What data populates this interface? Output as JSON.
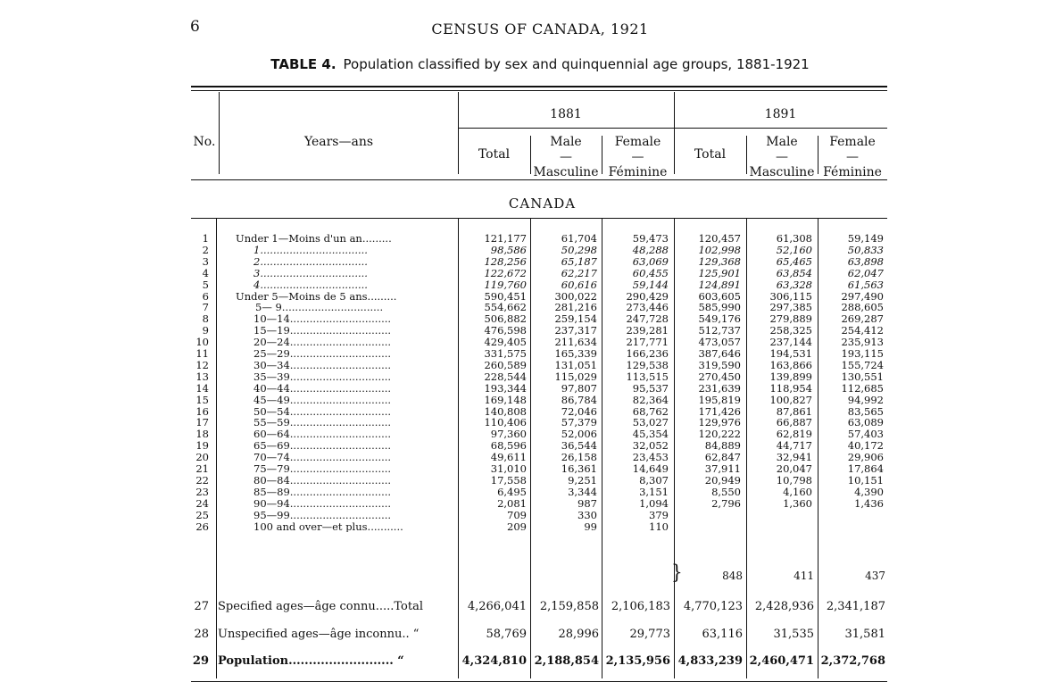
{
  "page_number": "6",
  "census_title": "CENSUS OF CANADA, 1921",
  "table_title_number": "TABLE 4.",
  "table_title_text": "Population classified by sex and quinquennial age groups, 1881-1921",
  "headers": {
    "no": "No.",
    "years": "Years—ans",
    "year_1881": "1881",
    "year_1891": "1891",
    "total": "Total",
    "male_en": "Male",
    "male_fr": "Masculine",
    "female_en": "Female",
    "female_fr": "Féminine",
    "dash": "—"
  },
  "section": "CANADA",
  "rows": [
    {
      "no": "1",
      "label": "Under 1—Moins d'un an.........",
      "c1": "121,177",
      "c2": "61,704",
      "c3": "59,473",
      "c4": "120,457",
      "c5": "61,308",
      "c6": "59,149",
      "indent": 0,
      "italic": false
    },
    {
      "no": "2",
      "label": "1.................................",
      "c1": "98,586",
      "c2": "50,298",
      "c3": "48,288",
      "c4": "102,998",
      "c5": "52,160",
      "c6": "50,833",
      "indent": 1,
      "italic": true
    },
    {
      "no": "3",
      "label": "2.................................",
      "c1": "128,256",
      "c2": "65,187",
      "c3": "63,069",
      "c4": "129,368",
      "c5": "65,465",
      "c6": "63,898",
      "indent": 1,
      "italic": true
    },
    {
      "no": "4",
      "label": "3.................................",
      "c1": "122,672",
      "c2": "62,217",
      "c3": "60,455",
      "c4": "125,901",
      "c5": "63,854",
      "c6": "62,047",
      "indent": 1,
      "italic": true
    },
    {
      "no": "5",
      "label": "4.................................",
      "c1": "119,760",
      "c2": "60,616",
      "c3": "59,144",
      "c4": "124,891",
      "c5": "63,328",
      "c6": "61,563",
      "indent": 1,
      "italic": true
    },
    {
      "no": "6",
      "label": "Under 5—Moins de 5 ans.........",
      "c1": "590,451",
      "c2": "300,022",
      "c3": "290,429",
      "c4": "603,605",
      "c5": "306,115",
      "c6": "297,490",
      "indent": 0,
      "italic": false
    },
    {
      "no": "7",
      "label": "5— 9...............................",
      "c1": "554,662",
      "c2": "281,216",
      "c3": "273,446",
      "c4": "585,990",
      "c5": "297,385",
      "c6": "288,605",
      "indent": 2,
      "italic": false
    },
    {
      "no": "8",
      "label": "10—14...............................",
      "c1": "506,882",
      "c2": "259,154",
      "c3": "247,728",
      "c4": "549,176",
      "c5": "279,889",
      "c6": "269,287",
      "indent": 1,
      "italic": false
    },
    {
      "no": "9",
      "label": "15—19...............................",
      "c1": "476,598",
      "c2": "237,317",
      "c3": "239,281",
      "c4": "512,737",
      "c5": "258,325",
      "c6": "254,412",
      "indent": 1,
      "italic": false
    },
    {
      "no": "10",
      "label": "20—24...............................",
      "c1": "429,405",
      "c2": "211,634",
      "c3": "217,771",
      "c4": "473,057",
      "c5": "237,144",
      "c6": "235,913",
      "indent": 1,
      "italic": false
    },
    {
      "no": "11",
      "label": "25—29...............................",
      "c1": "331,575",
      "c2": "165,339",
      "c3": "166,236",
      "c4": "387,646",
      "c5": "194,531",
      "c6": "193,115",
      "indent": 1,
      "italic": false
    },
    {
      "no": "12",
      "label": "30—34...............................",
      "c1": "260,589",
      "c2": "131,051",
      "c3": "129,538",
      "c4": "319,590",
      "c5": "163,866",
      "c6": "155,724",
      "indent": 1,
      "italic": false
    },
    {
      "no": "13",
      "label": "35—39...............................",
      "c1": "228,544",
      "c2": "115,029",
      "c3": "113,515",
      "c4": "270,450",
      "c5": "139,899",
      "c6": "130,551",
      "indent": 1,
      "italic": false
    },
    {
      "no": "14",
      "label": "40—44...............................",
      "c1": "193,344",
      "c2": "97,807",
      "c3": "95,537",
      "c4": "231,639",
      "c5": "118,954",
      "c6": "112,685",
      "indent": 1,
      "italic": false
    },
    {
      "no": "15",
      "label": "45—49...............................",
      "c1": "169,148",
      "c2": "86,784",
      "c3": "82,364",
      "c4": "195,819",
      "c5": "100,827",
      "c6": "94,992",
      "indent": 1,
      "italic": false
    },
    {
      "no": "16",
      "label": "50—54...............................",
      "c1": "140,808",
      "c2": "72,046",
      "c3": "68,762",
      "c4": "171,426",
      "c5": "87,861",
      "c6": "83,565",
      "indent": 1,
      "italic": false
    },
    {
      "no": "17",
      "label": "55—59...............................",
      "c1": "110,406",
      "c2": "57,379",
      "c3": "53,027",
      "c4": "129,976",
      "c5": "66,887",
      "c6": "63,089",
      "indent": 1,
      "italic": false
    },
    {
      "no": "18",
      "label": "60—64...............................",
      "c1": "97,360",
      "c2": "52,006",
      "c3": "45,354",
      "c4": "120,222",
      "c5": "62,819",
      "c6": "57,403",
      "indent": 1,
      "italic": false
    },
    {
      "no": "19",
      "label": "65—69...............................",
      "c1": "68,596",
      "c2": "36,544",
      "c3": "32,052",
      "c4": "84,889",
      "c5": "44,717",
      "c6": "40,172",
      "indent": 1,
      "italic": false
    },
    {
      "no": "20",
      "label": "70—74...............................",
      "c1": "49,611",
      "c2": "26,158",
      "c3": "23,453",
      "c4": "62,847",
      "c5": "32,941",
      "c6": "29,906",
      "indent": 1,
      "italic": false
    },
    {
      "no": "21",
      "label": "75—79...............................",
      "c1": "31,010",
      "c2": "16,361",
      "c3": "14,649",
      "c4": "37,911",
      "c5": "20,047",
      "c6": "17,864",
      "indent": 1,
      "italic": false
    },
    {
      "no": "22",
      "label": "80—84...............................",
      "c1": "17,558",
      "c2": "9,251",
      "c3": "8,307",
      "c4": "20,949",
      "c5": "10,798",
      "c6": "10,151",
      "indent": 1,
      "italic": false
    },
    {
      "no": "23",
      "label": "85—89...............................",
      "c1": "6,495",
      "c2": "3,344",
      "c3": "3,151",
      "c4": "8,550",
      "c5": "4,160",
      "c6": "4,390",
      "indent": 1,
      "italic": false
    },
    {
      "no": "24",
      "label": "90—94...............................",
      "c1": "2,081",
      "c2": "987",
      "c3": "1,094",
      "c4": "2,796",
      "c5": "1,360",
      "c6": "1,436",
      "indent": 1,
      "italic": false
    },
    {
      "no": "25",
      "label": "95—99...............................",
      "c1": "709",
      "c2": "330",
      "c3": "379",
      "c4": "",
      "c5": "",
      "c6": "",
      "indent": 1,
      "italic": false
    },
    {
      "no": "26",
      "label": "100 and over—et plus...........",
      "c1": "209",
      "c2": "99",
      "c3": "110",
      "c4": "",
      "c5": "",
      "c6": "",
      "indent": 1,
      "italic": false
    }
  ],
  "merged_95_plus": {
    "c4": "848",
    "c5": "411",
    "c6": "437"
  },
  "row27": {
    "no": "27",
    "label": "Specified ages—âge connu.....Total",
    "c1": "4,266,041",
    "c2": "2,159,858",
    "c3": "2,106,183",
    "c4": "4,770,123",
    "c5": "2,428,936",
    "c6": "2,341,187"
  },
  "row28": {
    "no": "28",
    "label": "Unspecified ages—âge inconnu.. “",
    "c1": "58,769",
    "c2": "28,996",
    "c3": "29,773",
    "c4": "63,116",
    "c5": "31,535",
    "c6": "31,581"
  },
  "row29": {
    "no": "29",
    "label": "Population.......................... “",
    "c1": "4,324,810",
    "c2": "2,188,854",
    "c3": "2,135,956",
    "c4": "4,833,239",
    "c5": "2,460,471",
    "c6": "2,372,768"
  }
}
